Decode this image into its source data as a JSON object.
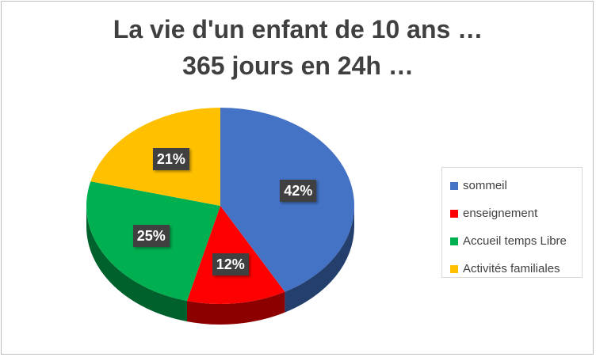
{
  "title_lines": [
    "La vie d'un enfant de 10 ans …",
    "365 jours en 24h …"
  ],
  "chart_data": {
    "type": "pie",
    "title": "La vie d'un enfant de 10 ans … 365 jours en 24h …",
    "categories": [
      "sommeil",
      "enseignement",
      "Accueil temps Libre",
      "Activités familiales"
    ],
    "values": [
      42,
      12,
      25,
      21
    ],
    "labels": [
      "42%",
      "12%",
      "25%",
      "21%"
    ],
    "colors": [
      "#4472C4",
      "#FF0000",
      "#00B050",
      "#FFC000"
    ],
    "legend_position": "right"
  }
}
